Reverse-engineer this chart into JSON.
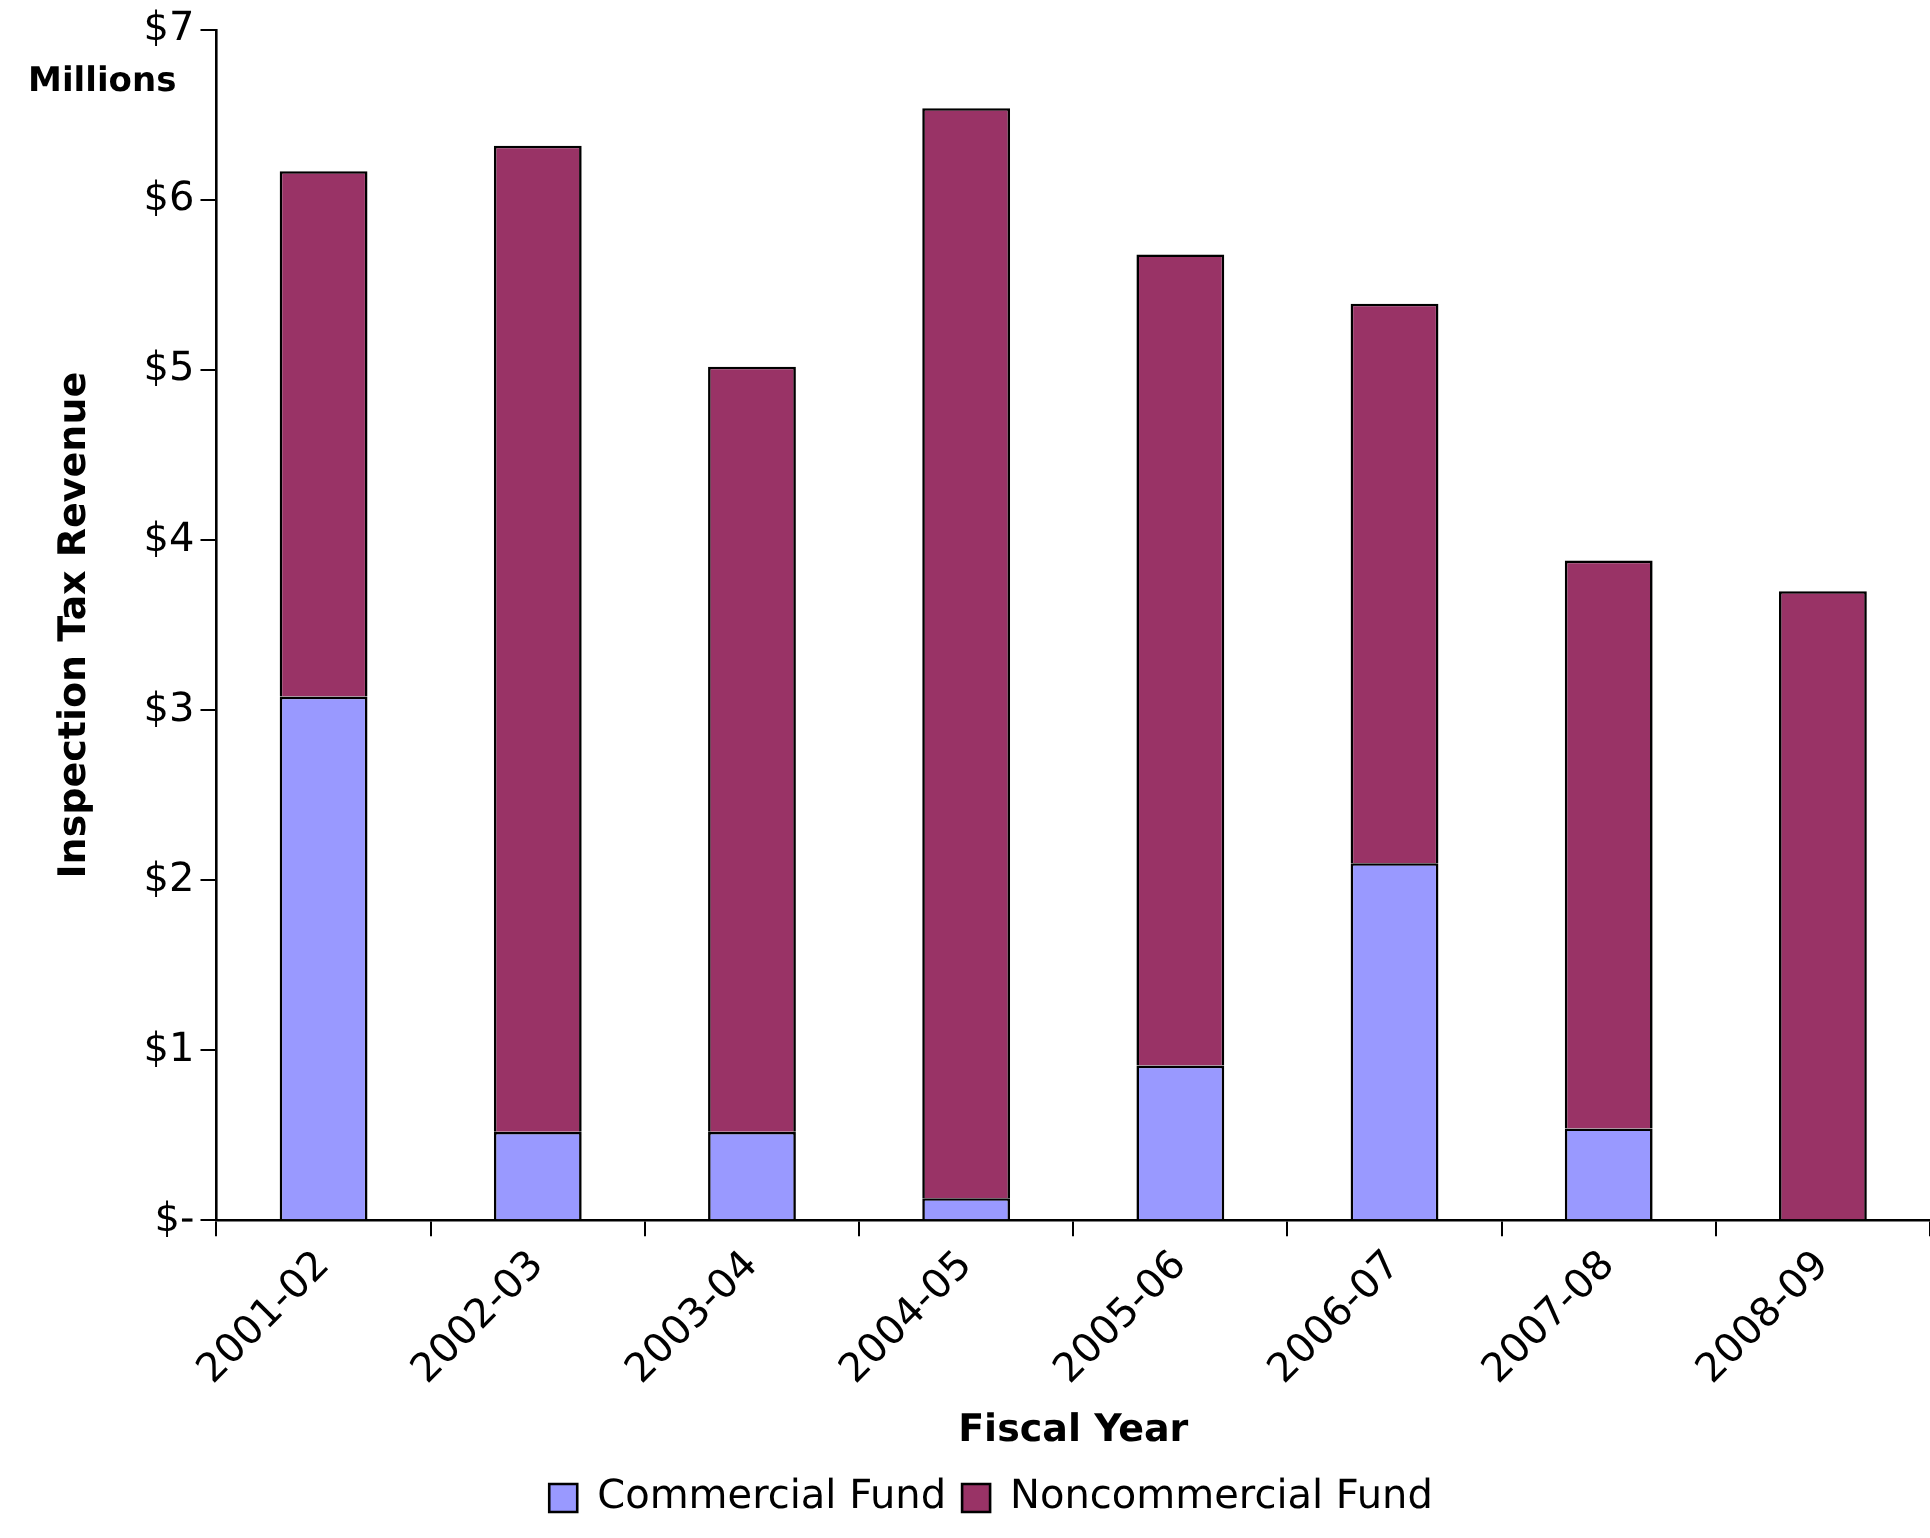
{
  "chart_data": {
    "type": "bar",
    "stacked": true,
    "categories": [
      "2001-02",
      "2002-03",
      "2003-04",
      "2004-05",
      "2005-06",
      "2006-07",
      "2007-08",
      "2008-09"
    ],
    "series": [
      {
        "name": "Commercial Fund",
        "color": "#9999ff",
        "values": [
          3.08,
          0.52,
          0.52,
          0.13,
          0.91,
          2.1,
          0.54,
          0
        ]
      },
      {
        "name": "Noncommercial Fund",
        "color": "#993366",
        "values": [
          3.09,
          5.8,
          4.5,
          6.41,
          4.77,
          3.29,
          3.34,
          3.7
        ]
      }
    ],
    "ylim": [
      0,
      7
    ],
    "yticks": [
      {
        "value": 0,
        "label": "$-"
      },
      {
        "value": 1,
        "label": "$1"
      },
      {
        "value": 2,
        "label": "$2"
      },
      {
        "value": 3,
        "label": "$3"
      },
      {
        "value": 4,
        "label": "$4"
      },
      {
        "value": 5,
        "label": "$5"
      },
      {
        "value": 6,
        "label": "$6"
      },
      {
        "value": 7,
        "label": "$7"
      }
    ],
    "xlabel": "Fiscal Year",
    "ylabel": "Inspection Tax Revenue",
    "annotations": [
      "Millions"
    ],
    "grid": false,
    "legend": "bottom"
  }
}
